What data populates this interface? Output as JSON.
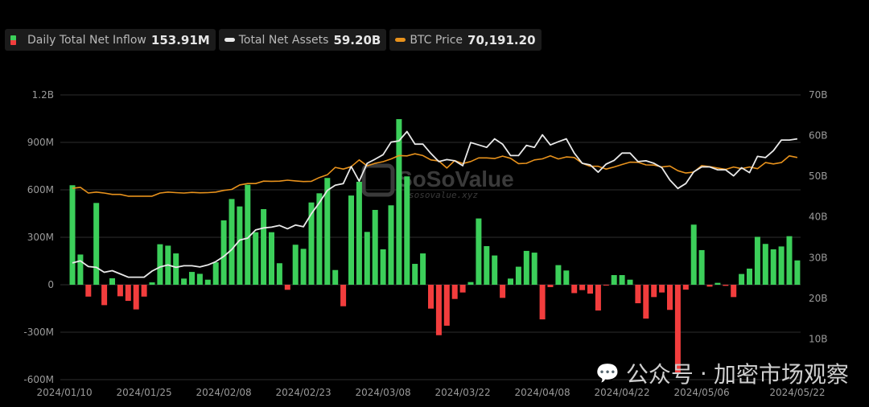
{
  "legend": {
    "inflow": {
      "label": "Daily Total Net Inflow",
      "value": "153.91M"
    },
    "assets": {
      "label": "Total Net Assets",
      "value": "59.20B"
    },
    "btc": {
      "label": "BTC Price",
      "value": "70,191.20"
    }
  },
  "watermark": {
    "brand": "SoSoValue",
    "url": "sosovalue.xyz"
  },
  "wechat": {
    "icon": "wechat-icon",
    "prefix": "公众号",
    "sep": "·",
    "name": "加密市场观察"
  },
  "colors": {
    "up": "#3ccf5a",
    "down": "#f23d3d",
    "assets": "#e9e9e9",
    "btc": "#e8921c",
    "grid": "#2e2e2e"
  },
  "chart_data": {
    "type": "bar+line",
    "left_axis": {
      "ticks": [
        -600,
        -300,
        0,
        300,
        600,
        900,
        1200
      ],
      "labels": [
        "-600M",
        "-300M",
        "0",
        "300M",
        "600M",
        "900M",
        "1.2B"
      ],
      "range": [
        -600,
        1200
      ],
      "unit": "M USD"
    },
    "right_axis": {
      "ticks": [
        10,
        20,
        30,
        40,
        50,
        60,
        70
      ],
      "labels": [
        "10B",
        "20B",
        "30B",
        "40B",
        "50B",
        "60B",
        "70B"
      ],
      "range": [
        0,
        70
      ],
      "unit": "B USD"
    },
    "btc_axis_hidden_range": [
      -105546,
      119660
    ],
    "x_ticks": [
      {
        "index": -1,
        "label": "2024/01/10"
      },
      {
        "index": 9,
        "label": "2024/01/25"
      },
      {
        "index": 19,
        "label": "2024/02/08"
      },
      {
        "index": 29,
        "label": "2024/02/23"
      },
      {
        "index": 39,
        "label": "2024/03/08"
      },
      {
        "index": 49,
        "label": "2024/03/22"
      },
      {
        "index": 59,
        "label": "2024/04/08"
      },
      {
        "index": 69,
        "label": "2024/04/22"
      },
      {
        "index": 79,
        "label": "2024/05/06"
      },
      {
        "index": 91,
        "label": "2024/05/22"
      }
    ],
    "series": [
      {
        "name": "Daily Total Net Inflow",
        "type": "bar",
        "unit": "M",
        "values": [
          629,
          191,
          -75,
          517,
          -129,
          41,
          -73,
          -102,
          -156,
          -75,
          15,
          256,
          247,
          198,
          39,
          81,
          69,
          32,
          142,
          407,
          542,
          495,
          632,
          332,
          478,
          332,
          136,
          -32,
          253,
          227,
          520,
          578,
          675,
          93,
          -136,
          564,
          651,
          334,
          473,
          224,
          502,
          1047,
          685,
          132,
          198,
          -151,
          -319,
          -259,
          -90,
          -49,
          17,
          419,
          244,
          185,
          -83,
          39,
          114,
          214,
          203,
          -219,
          -15,
          124,
          90,
          -53,
          -34,
          -56,
          -163,
          -2,
          61,
          61,
          32,
          -117,
          -214,
          -78,
          -49,
          -159,
          -556,
          -31,
          380,
          219,
          -12,
          12,
          -7,
          -78,
          68,
          102,
          303,
          258,
          224,
          242,
          307,
          153.91
        ]
      },
      {
        "name": "Total Net Assets",
        "type": "line",
        "unit": "B",
        "values": [
          28.7,
          29.2,
          27.8,
          27.6,
          26.4,
          26.8,
          26.0,
          25.2,
          25.2,
          25.2,
          26.7,
          27.7,
          28.2,
          27.6,
          28.0,
          28.0,
          27.7,
          28.2,
          29.0,
          30.3,
          32.0,
          34.3,
          34.8,
          36.8,
          37.3,
          37.5,
          37.9,
          37.1,
          38.0,
          37.6,
          40.8,
          43.5,
          46.5,
          47.8,
          48.2,
          52.4,
          48.8,
          53.2,
          54.2,
          55.3,
          58.4,
          58.7,
          61.0,
          57.9,
          57.9,
          55.6,
          53.6,
          54.1,
          53.8,
          52.6,
          58.3,
          57.7,
          57.1,
          59.2,
          57.9,
          55.1,
          55.1,
          57.6,
          57.1,
          60.2,
          57.7,
          58.5,
          59.2,
          55.7,
          53.2,
          52.8,
          51.0,
          53.0,
          53.9,
          55.7,
          55.7,
          53.6,
          53.8,
          53.2,
          52.1,
          49.1,
          47.0,
          48.2,
          51.1,
          52.3,
          52.3,
          51.6,
          51.6,
          50.1,
          52.1,
          50.9,
          54.9,
          54.6,
          56.3,
          58.9,
          58.9,
          59.2
        ]
      },
      {
        "name": "BTC Price",
        "type": "line",
        "unit": "USD",
        "values": [
          45780,
          46540,
          42050,
          42790,
          42050,
          40960,
          40960,
          39580,
          39580,
          39580,
          39580,
          42050,
          42790,
          42370,
          42050,
          42580,
          42250,
          42370,
          42790,
          44170,
          44940,
          48470,
          49530,
          49530,
          51460,
          51350,
          51460,
          52200,
          51680,
          51140,
          51350,
          54350,
          56490,
          62370,
          60990,
          62920,
          68250,
          63560,
          65580,
          66870,
          69010,
          71680,
          71460,
          73070,
          71680,
          68250,
          67410,
          61830,
          67730,
          65360,
          66970,
          69860,
          69860,
          69330,
          71260,
          69540,
          65360,
          65580,
          68250,
          69110,
          71460,
          69010,
          70620,
          70190,
          65580,
          63240,
          63240,
          60990,
          62690,
          64620,
          66450,
          66340,
          64300,
          64200,
          62690,
          63430,
          59710,
          57880,
          58620,
          63750,
          62920,
          61830,
          60770,
          62690,
          61310,
          62690,
          61310,
          66130,
          65050,
          66130,
          71460,
          70191.2
        ]
      }
    ]
  }
}
